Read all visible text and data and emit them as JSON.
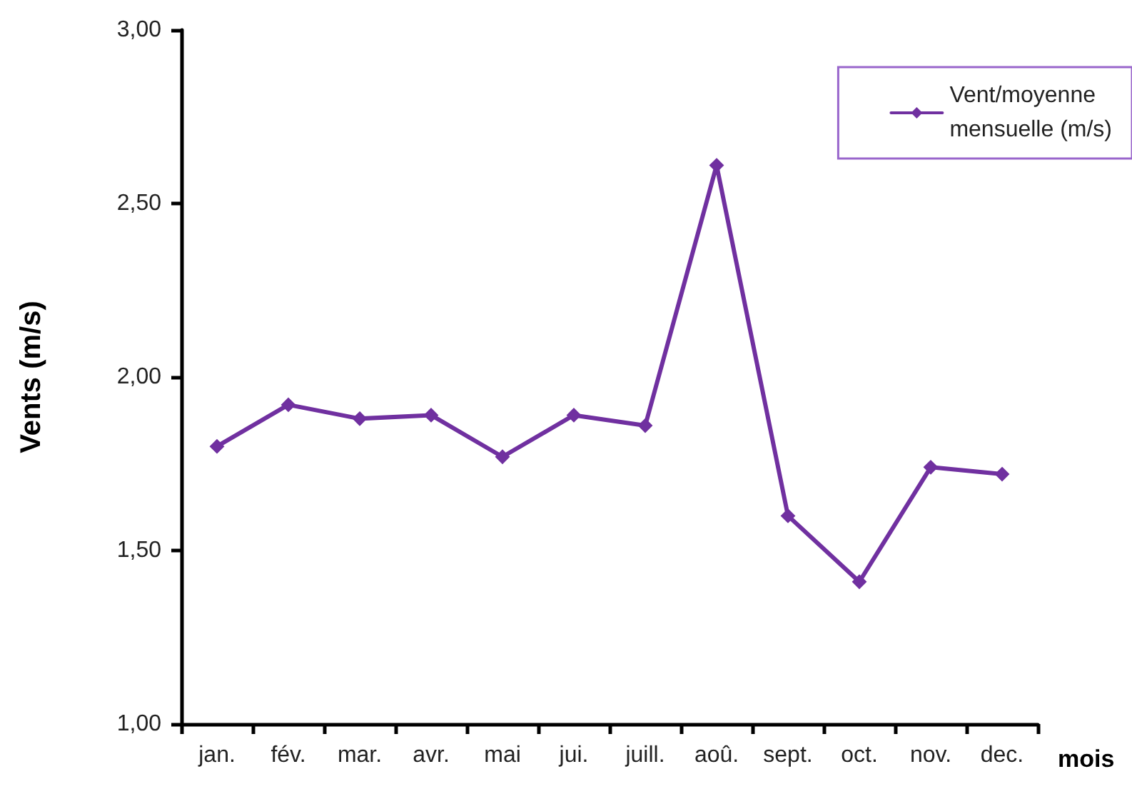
{
  "chart_data": {
    "type": "line",
    "categories": [
      "jan.",
      "fév.",
      "mar.",
      "avr.",
      "mai",
      "jui.",
      "juill.",
      "aoû.",
      "sept.",
      "oct.",
      "nov.",
      "dec."
    ],
    "series": [
      {
        "name": "Vent/moyenne\nmensuelle (m/s)",
        "color": "#7030a0",
        "values": [
          1.8,
          1.92,
          1.88,
          1.89,
          1.77,
          1.89,
          1.86,
          2.61,
          1.6,
          1.41,
          1.74,
          1.72
        ]
      }
    ],
    "xlabel": "mois",
    "ylabel": "Vents (m/s)",
    "ylim": [
      1,
      3
    ],
    "yticks": [
      {
        "value": 1,
        "label": "1,00"
      },
      {
        "value": 1.5,
        "label": "1,50"
      },
      {
        "value": 2,
        "label": "2,00"
      },
      {
        "value": 2.5,
        "label": "2,50"
      },
      {
        "value": 3,
        "label": "3,00"
      }
    ],
    "grid": false,
    "legend": "top right",
    "marker": "diamond",
    "line_style": "solid"
  }
}
